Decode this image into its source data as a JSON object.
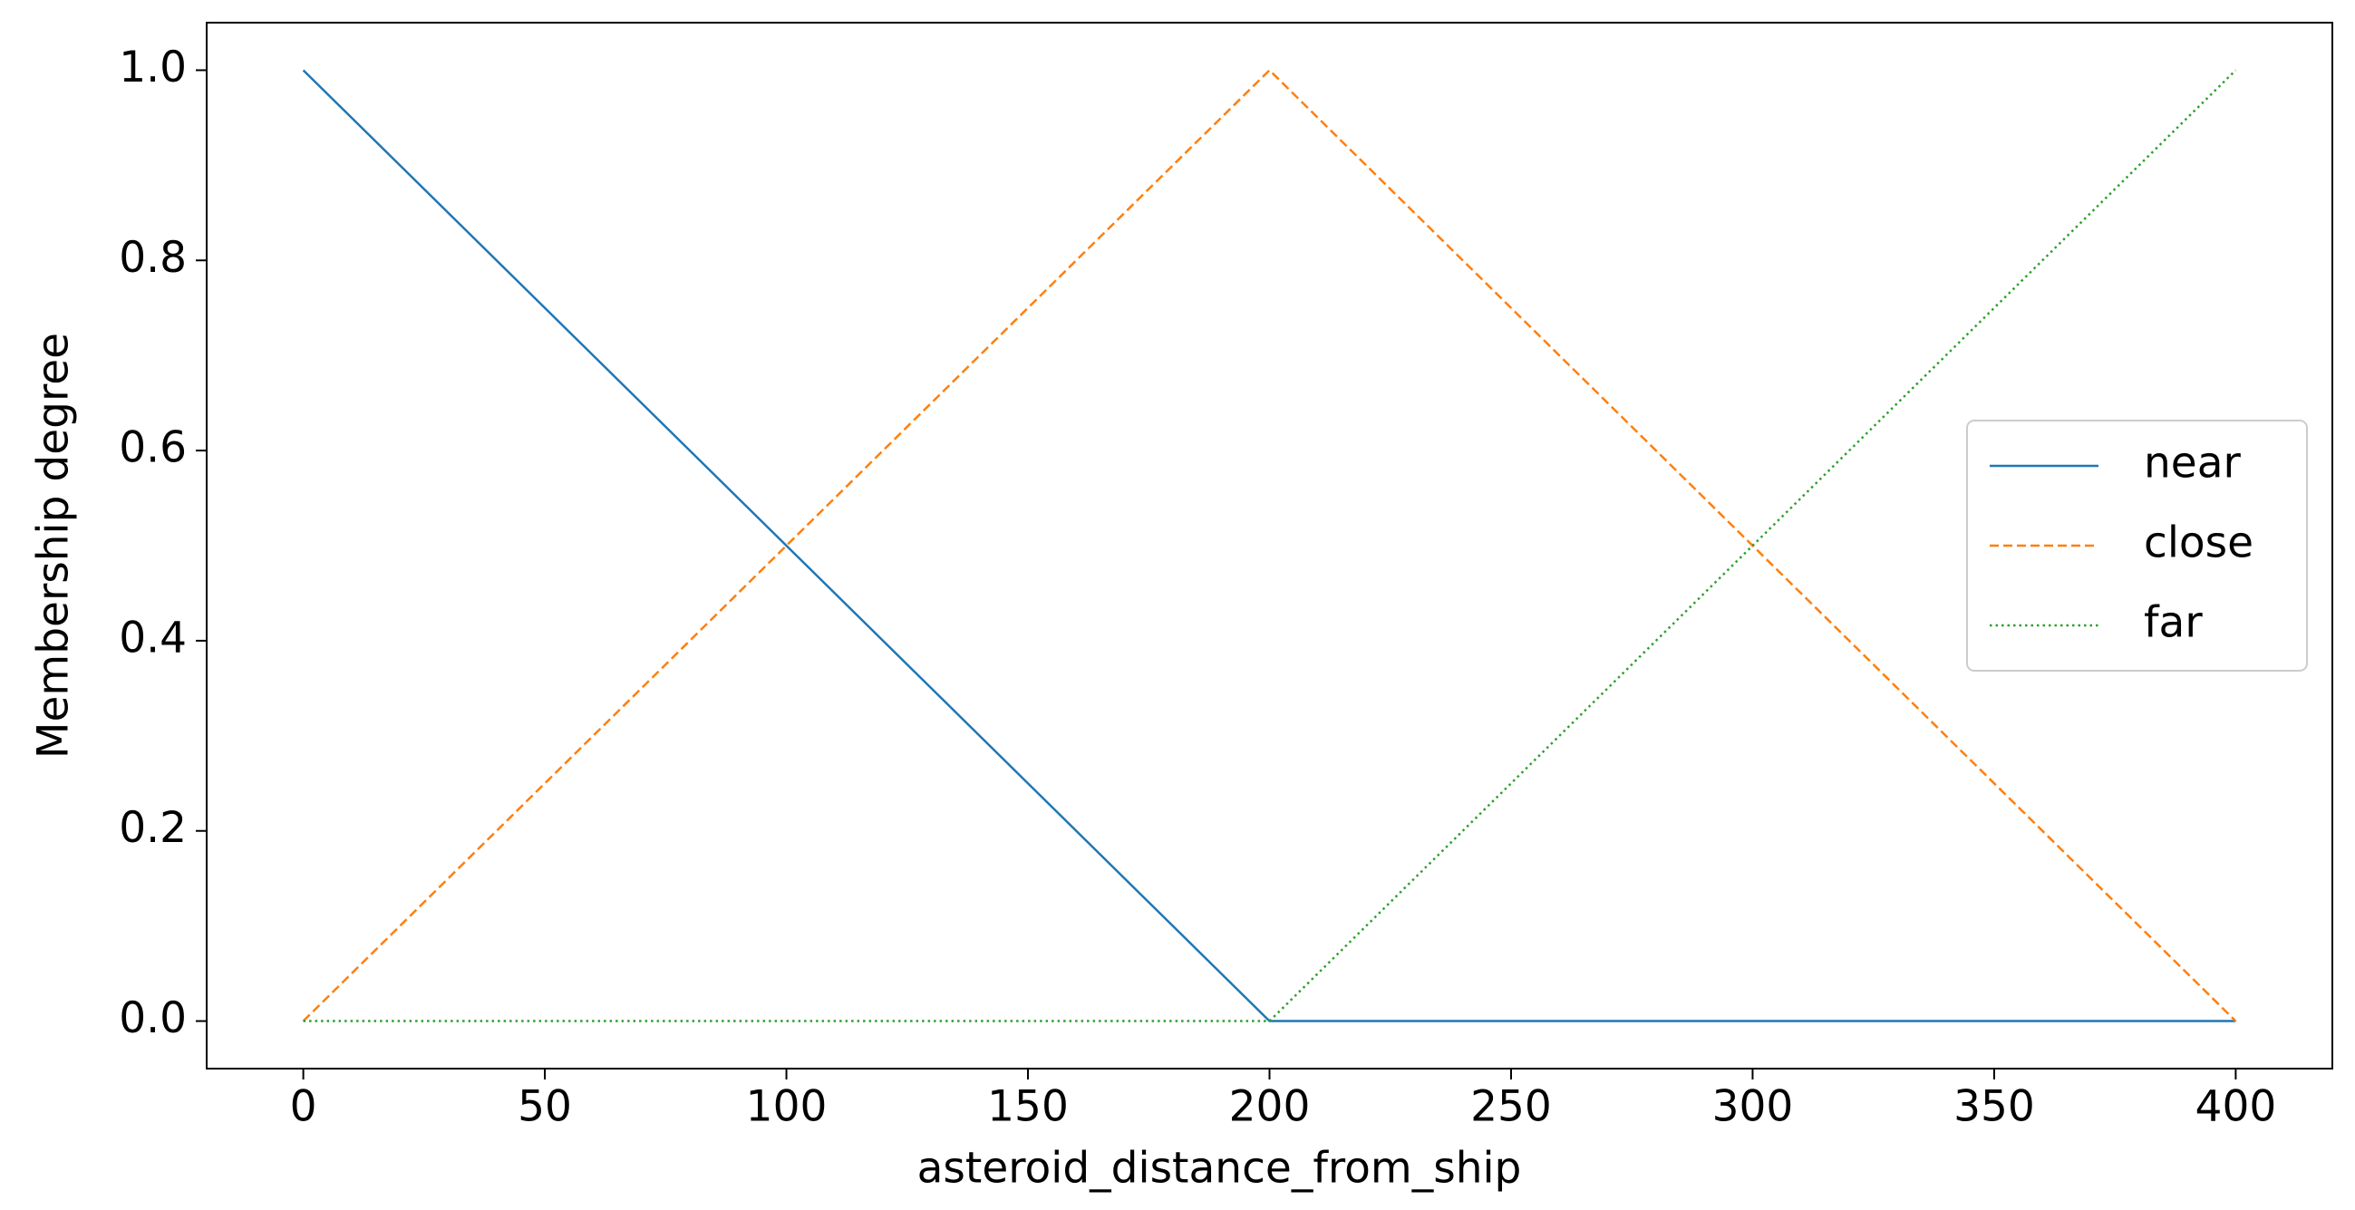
{
  "chart_data": {
    "type": "line",
    "xlabel": "asteroid_distance_from_ship",
    "ylabel": "Membership degree",
    "x": [
      0,
      200,
      400
    ],
    "series": [
      {
        "name": "near",
        "color": "#1f77b4",
        "linestyle": "solid",
        "values": [
          1,
          0,
          0
        ]
      },
      {
        "name": "close",
        "color": "#ff7f0e",
        "linestyle": "dashed",
        "values": [
          0,
          1,
          0
        ]
      },
      {
        "name": "far",
        "color": "#2ca02c",
        "linestyle": "dotted",
        "values": [
          0,
          0,
          1
        ]
      }
    ],
    "xlim": [
      -20,
      420
    ],
    "xticks": [
      0,
      50,
      100,
      150,
      200,
      250,
      300,
      350,
      400
    ],
    "ylim": [
      -0.05,
      1.05
    ],
    "yticks": [
      {
        "value": 0,
        "label": "0.0"
      },
      {
        "value": 0.2,
        "label": "0.2"
      },
      {
        "value": 0.4,
        "label": "0.4"
      },
      {
        "value": 0.6,
        "label": "0.6"
      },
      {
        "value": 0.8,
        "label": "0.8"
      },
      {
        "value": 1,
        "label": "1.0"
      }
    ],
    "grid": false,
    "legend": "center right"
  }
}
